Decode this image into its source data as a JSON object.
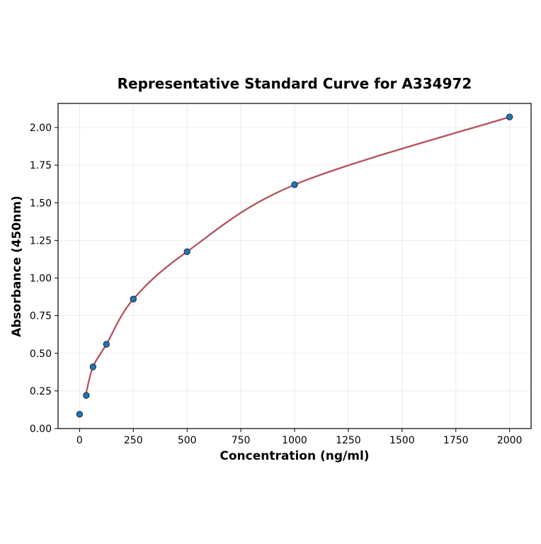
{
  "chart_data": {
    "type": "scatter",
    "title": "Representative Standard Curve for A334972",
    "xlabel": "Concentration (ng/ml)",
    "ylabel": "Absorbance (450nm)",
    "xlim": [
      -100,
      2100
    ],
    "ylim": [
      0,
      2.16
    ],
    "xticks": [
      0,
      250,
      500,
      750,
      1000,
      1250,
      1500,
      1750,
      2000
    ],
    "xtick_labels": [
      "0",
      "250",
      "500",
      "750",
      "1000",
      "1250",
      "1500",
      "1750",
      "2000"
    ],
    "yticks": [
      0,
      0.25,
      0.5,
      0.75,
      1.0,
      1.25,
      1.5,
      1.75,
      2.0
    ],
    "ytick_labels": [
      "0.00",
      "0.25",
      "0.50",
      "0.75",
      "1.00",
      "1.25",
      "1.50",
      "1.75",
      "2.00"
    ],
    "grid": true,
    "series": [
      {
        "kind": "points",
        "color": "#1f77b4",
        "x": [
          0,
          31.25,
          62.5,
          125,
          250,
          500,
          1000,
          2000
        ],
        "y": [
          0.095,
          0.22,
          0.41,
          0.56,
          0.86,
          1.175,
          1.62,
          2.07
        ]
      },
      {
        "kind": "fit-line",
        "color": "#b5525e",
        "x_range": [
          31.25,
          2000
        ]
      }
    ]
  }
}
